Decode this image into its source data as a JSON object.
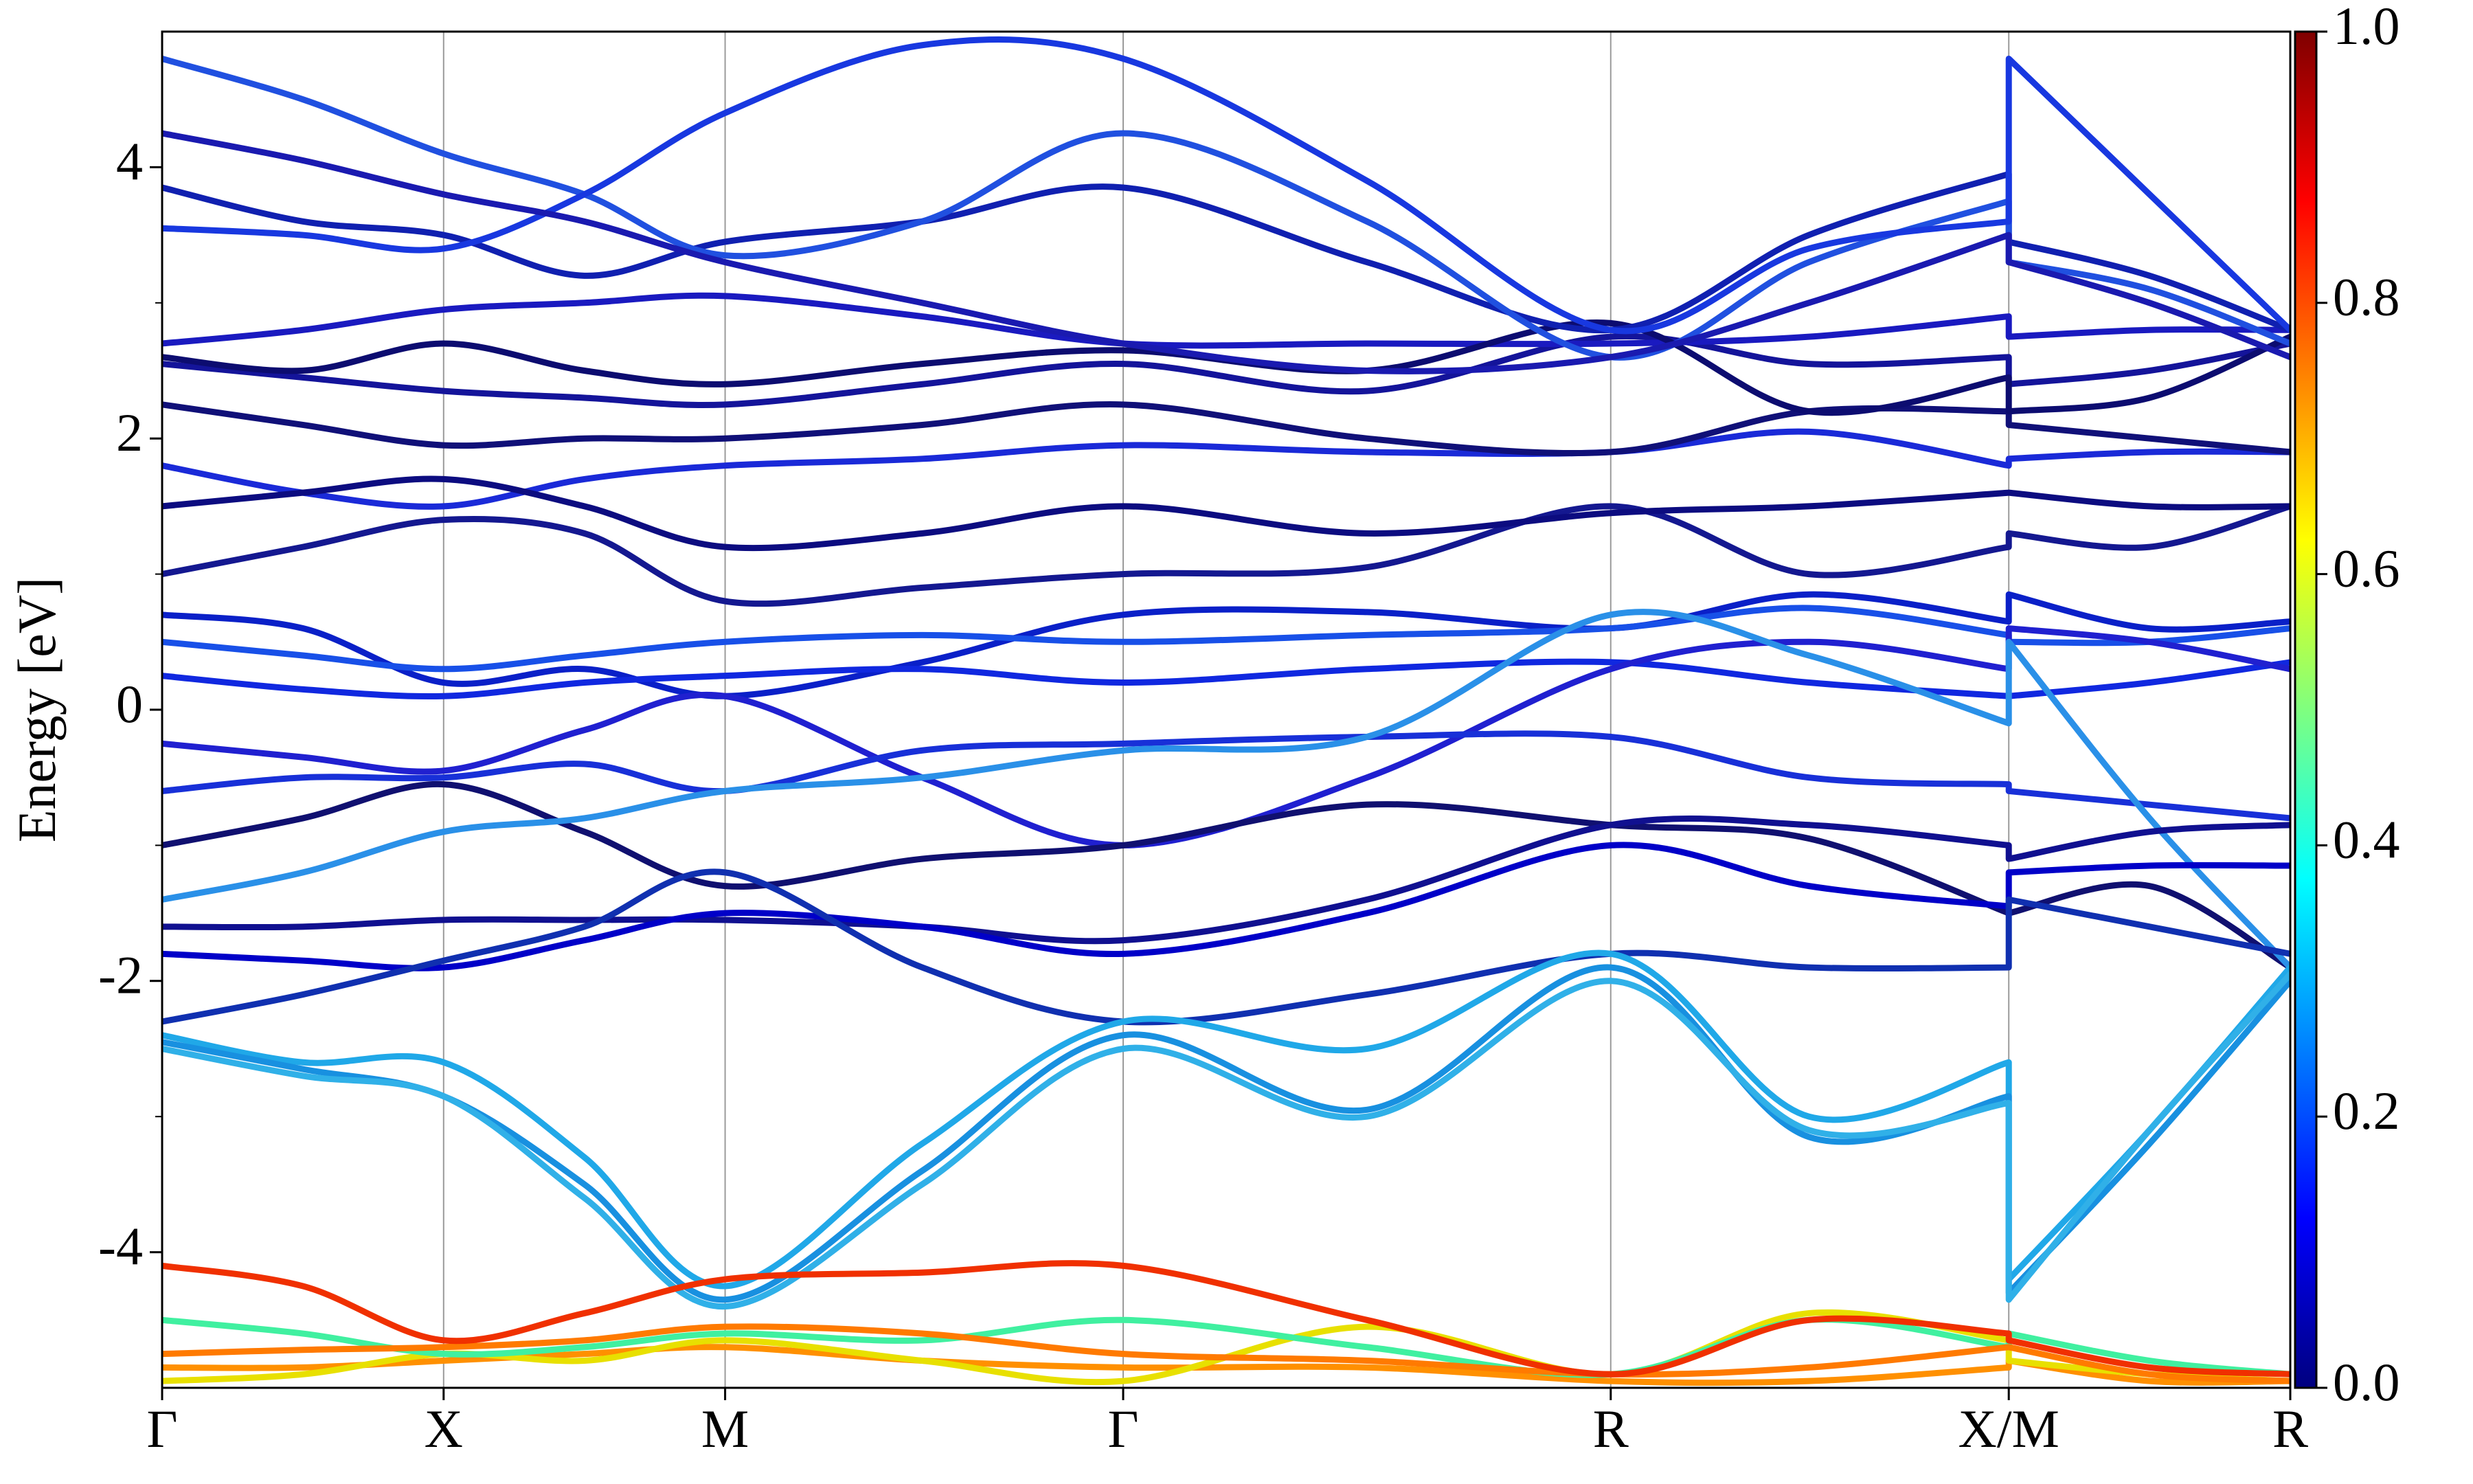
{
  "chart_data": {
    "type": "line",
    "ylabel": "Energy [eV]",
    "xlim": [
      0,
      7.56
    ],
    "ylim": [
      -5,
      5
    ],
    "xticks": [
      {
        "value": 0,
        "label": "Γ"
      },
      {
        "value": 1,
        "label": "X"
      },
      {
        "value": 2,
        "label": "M"
      },
      {
        "value": 3.414,
        "label": "Γ"
      },
      {
        "value": 5.146,
        "label": "R"
      },
      {
        "value": 6.56,
        "label": "X/M"
      },
      {
        "value": 7.56,
        "label": "R"
      }
    ],
    "yticks": [
      -4,
      -2,
      0,
      2,
      4
    ],
    "yminorticks": [
      -3,
      -1,
      1,
      3
    ],
    "grid": "x",
    "x": [
      0,
      0.5,
      1,
      1.5,
      2,
      2.7,
      3.414,
      4.28,
      5.146,
      5.85,
      6.56,
      6.56,
      7.06,
      7.56
    ],
    "series": [
      {
        "color": "#1a2ad8",
        "values": [
          1.8,
          1.6,
          1.5,
          1.7,
          1.8,
          1.85,
          1.95,
          1.9,
          1.9,
          2.05,
          1.8,
          1.85,
          1.9,
          1.9
        ]
      },
      {
        "color": "#101078",
        "values": [
          2.25,
          2.1,
          1.95,
          2.0,
          2.0,
          2.1,
          2.25,
          2.0,
          1.9,
          2.2,
          2.2,
          2.1,
          2.0,
          1.9
        ]
      },
      {
        "color": "#14149a",
        "values": [
          2.55,
          2.45,
          2.35,
          2.3,
          2.25,
          2.4,
          2.55,
          2.35,
          2.75,
          2.55,
          2.6,
          2.4,
          2.5,
          2.7
        ]
      },
      {
        "color": "#1a1ac0",
        "values": [
          2.7,
          2.8,
          2.95,
          3.0,
          3.05,
          2.9,
          2.7,
          2.7,
          2.7,
          2.75,
          2.9,
          2.75,
          2.8,
          2.8
        ]
      },
      {
        "color": "#0c0c70",
        "values": [
          2.6,
          2.5,
          2.7,
          2.5,
          2.4,
          2.55,
          2.65,
          2.5,
          2.85,
          2.2,
          2.45,
          2.2,
          2.3,
          2.75
        ]
      },
      {
        "color": "#1020b0",
        "values": [
          3.85,
          3.6,
          3.5,
          3.2,
          3.45,
          3.6,
          3.85,
          3.3,
          2.8,
          3.5,
          3.95,
          3.45,
          3.2,
          2.8
        ]
      },
      {
        "color": "#2050e0",
        "values": [
          4.8,
          4.5,
          4.1,
          3.8,
          3.35,
          3.6,
          4.25,
          3.6,
          2.6,
          3.3,
          3.75,
          3.3,
          3.1,
          2.7
        ]
      },
      {
        "color": "#1838e0",
        "values": [
          3.55,
          3.5,
          3.4,
          3.8,
          4.4,
          4.9,
          4.8,
          3.9,
          2.8,
          3.4,
          3.6,
          4.8,
          3.8,
          2.8
        ]
      },
      {
        "color": "#1a1ab0",
        "values": [
          4.25,
          4.05,
          3.8,
          3.6,
          3.3,
          3.0,
          2.7,
          2.5,
          2.6,
          3.0,
          3.5,
          3.3,
          3.0,
          2.6
        ]
      },
      {
        "color": "#141890",
        "values": [
          1.0,
          1.2,
          1.4,
          1.3,
          0.8,
          0.9,
          1.0,
          1.05,
          1.5,
          1.0,
          1.2,
          1.3,
          1.2,
          1.5
        ]
      },
      {
        "color": "#0c0c80",
        "values": [
          1.5,
          1.6,
          1.7,
          1.5,
          1.2,
          1.3,
          1.5,
          1.3,
          1.45,
          1.5,
          1.6,
          1.6,
          1.5,
          1.5
        ]
      },
      {
        "color": "#0a20c8",
        "values": [
          0.7,
          0.6,
          0.2,
          0.3,
          0.1,
          0.35,
          0.7,
          0.72,
          0.6,
          0.85,
          0.65,
          0.85,
          0.6,
          0.65
        ]
      },
      {
        "color": "#1850e8",
        "values": [
          0.5,
          0.4,
          0.3,
          0.4,
          0.5,
          0.55,
          0.5,
          0.55,
          0.6,
          0.75,
          0.55,
          0.5,
          0.5,
          0.6
        ]
      },
      {
        "color": "#1028e0",
        "values": [
          0.25,
          0.15,
          0.1,
          0.2,
          0.25,
          0.3,
          0.2,
          0.3,
          0.35,
          0.2,
          0.1,
          0.1,
          0.2,
          0.35
        ]
      },
      {
        "color": "#2020d0",
        "values": [
          -0.25,
          -0.35,
          -0.45,
          -0.15,
          0.1,
          -0.5,
          -1.0,
          -0.5,
          0.3,
          0.5,
          0.3,
          0.6,
          0.5,
          0.3
        ]
      },
      {
        "color": "#1830d8",
        "values": [
          -0.6,
          -0.5,
          -0.5,
          -0.4,
          -0.6,
          -0.3,
          -0.25,
          -0.2,
          -0.2,
          -0.5,
          -0.55,
          -0.6,
          -0.7,
          -0.8
        ]
      },
      {
        "color": "#101070",
        "values": [
          -1.0,
          -0.8,
          -0.55,
          -0.9,
          -1.3,
          -1.1,
          -1.0,
          -0.7,
          -0.85,
          -0.95,
          -1.5,
          -1.5,
          -1.3,
          -1.9
        ]
      },
      {
        "color": "#2a90e8",
        "values": [
          -1.4,
          -1.2,
          -0.9,
          -0.8,
          -0.6,
          -0.5,
          -0.3,
          -0.2,
          0.7,
          0.4,
          -0.1,
          0.5,
          -0.8,
          -1.9
        ]
      },
      {
        "color": "#101090",
        "values": [
          -1.6,
          -1.6,
          -1.55,
          -1.55,
          -1.55,
          -1.6,
          -1.7,
          -1.4,
          -0.85,
          -0.85,
          -1.0,
          -1.1,
          -0.9,
          -0.85
        ]
      },
      {
        "color": "#0000c8",
        "values": [
          -1.8,
          -1.85,
          -1.9,
          -1.7,
          -1.5,
          -1.6,
          -1.8,
          -1.5,
          -1.0,
          -1.3,
          -1.45,
          -1.2,
          -1.15,
          -1.15
        ]
      },
      {
        "color": "#1030b0",
        "values": [
          -2.3,
          -2.1,
          -1.85,
          -1.6,
          -1.2,
          -1.9,
          -2.3,
          -2.1,
          -1.8,
          -1.9,
          -1.9,
          -1.4,
          -1.6,
          -1.8
        ]
      },
      {
        "color": "#20a8e8",
        "values": [
          -2.4,
          -2.6,
          -2.6,
          -3.3,
          -4.25,
          -3.2,
          -2.3,
          -2.5,
          -1.8,
          -3.0,
          -2.6,
          -4.2,
          -3.1,
          -1.9
        ]
      },
      {
        "color": "#1890e0",
        "values": [
          -2.45,
          -2.65,
          -2.85,
          -3.5,
          -4.35,
          -3.4,
          -2.4,
          -2.95,
          -1.9,
          -3.15,
          -2.85,
          -4.3,
          -3.2,
          -2.0
        ]
      },
      {
        "color": "#30b0e8",
        "values": [
          -2.5,
          -2.7,
          -2.85,
          -3.6,
          -4.4,
          -3.5,
          -2.5,
          -3.0,
          -2.0,
          -3.1,
          -2.9,
          -4.35,
          -3.1,
          -1.95
        ]
      },
      {
        "color": "#ff9000",
        "values": [
          -4.85,
          -4.85,
          -4.8,
          -4.75,
          -4.7,
          -4.8,
          -4.85,
          -4.85,
          -4.95,
          -4.95,
          -4.85,
          -4.8,
          -4.95,
          -4.95
        ]
      },
      {
        "color": "#e8e000",
        "values": [
          -4.95,
          -4.9,
          -4.75,
          -4.8,
          -4.65,
          -4.8,
          -4.95,
          -4.55,
          -4.9,
          -4.45,
          -4.65,
          -4.8,
          -4.9,
          -4.95
        ]
      },
      {
        "color": "#40f0a0",
        "values": [
          -4.5,
          -4.6,
          -4.75,
          -4.7,
          -4.6,
          -4.65,
          -4.5,
          -4.7,
          -4.9,
          -4.5,
          -4.7,
          -4.6,
          -4.8,
          -4.9
        ]
      },
      {
        "color": "#ff7a00",
        "values": [
          -4.75,
          -4.72,
          -4.7,
          -4.65,
          -4.55,
          -4.6,
          -4.75,
          -4.8,
          -4.9,
          -4.85,
          -4.7,
          -4.7,
          -4.9,
          -4.95
        ]
      },
      {
        "color": "#f03000",
        "values": [
          -4.1,
          -4.25,
          -4.65,
          -4.45,
          -4.2,
          -4.15,
          -4.1,
          -4.5,
          -4.9,
          -4.5,
          -4.6,
          -4.65,
          -4.85,
          -4.9
        ]
      }
    ],
    "colorbar": {
      "lim": [
        0,
        1
      ],
      "ticks": [
        {
          "value": 0,
          "label": "0.0"
        },
        {
          "value": 0.2,
          "label": "0.2"
        },
        {
          "value": 0.4,
          "label": "0.4"
        },
        {
          "value": 0.6,
          "label": "0.6"
        },
        {
          "value": 0.8,
          "label": "0.8"
        },
        {
          "value": 1,
          "label": "1.0"
        }
      ],
      "colors": [
        "#00007f",
        "#0000ff",
        "#007fff",
        "#00ffff",
        "#7fff7f",
        "#ffff00",
        "#ff7f00",
        "#ff0000",
        "#7f0000"
      ]
    }
  }
}
